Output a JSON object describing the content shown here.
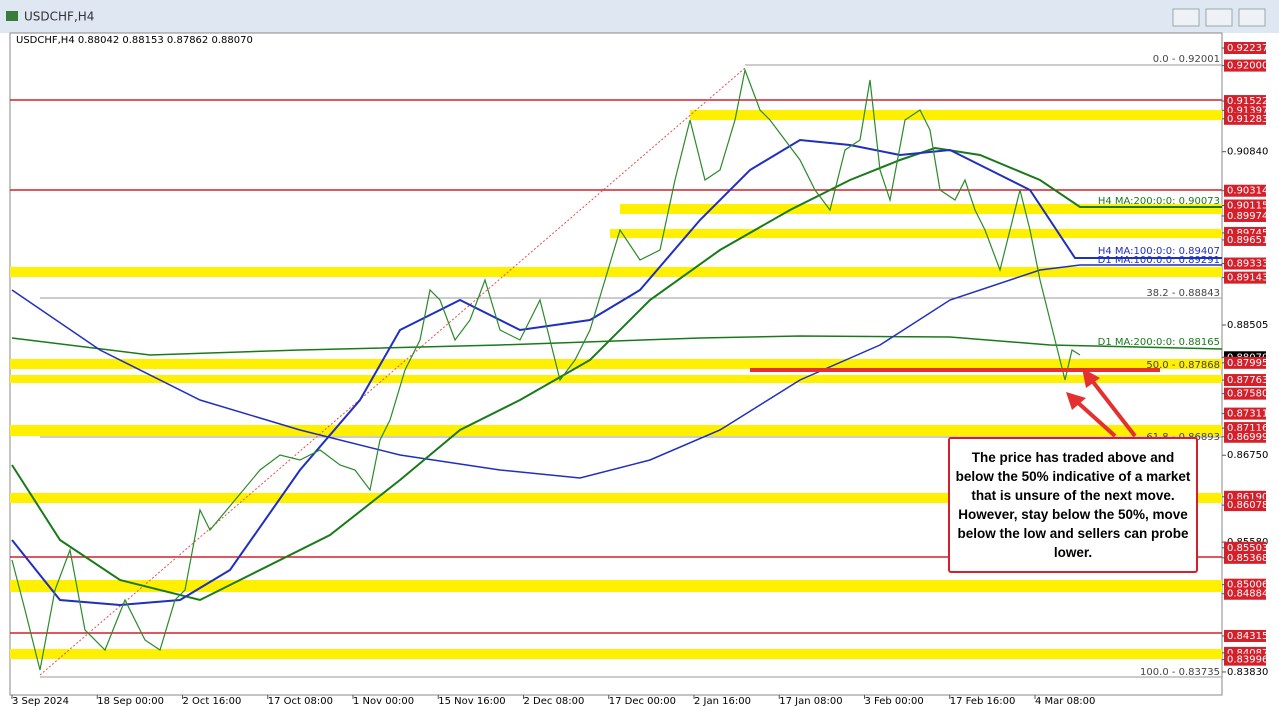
{
  "window": {
    "title": "USDCHF,H4"
  },
  "chart": {
    "info": "USDCHF,H4  0.88042 0.88153 0.87862 0.88070",
    "price_labels": [
      {
        "label": "0.92237",
        "color": "red"
      },
      {
        "label": "0.92000",
        "color": "red"
      },
      {
        "label": "0.91522",
        "color": "red"
      },
      {
        "label": "0.91397",
        "color": "red"
      },
      {
        "label": "0.91283",
        "color": "red"
      },
      {
        "label": "0.90840",
        "color": "none"
      },
      {
        "label": "0.90314",
        "color": "red"
      },
      {
        "label": "0.90115",
        "color": "red"
      },
      {
        "label": "0.89974",
        "color": "red"
      },
      {
        "label": "0.89745",
        "color": "red"
      },
      {
        "label": "0.89651",
        "color": "red"
      },
      {
        "label": "0.89333",
        "color": "red"
      },
      {
        "label": "0.89143",
        "color": "red"
      },
      {
        "label": "0.88505",
        "color": "none"
      },
      {
        "label": "0.88070",
        "color": "black"
      },
      {
        "label": "0.87995",
        "color": "red"
      },
      {
        "label": "0.87763",
        "color": "red"
      },
      {
        "label": "0.87580",
        "color": "red"
      },
      {
        "label": "0.87311",
        "color": "red"
      },
      {
        "label": "0.87116",
        "color": "red"
      },
      {
        "label": "0.86999",
        "color": "red"
      },
      {
        "label": "0.86750",
        "color": "none"
      },
      {
        "label": "0.86190",
        "color": "red"
      },
      {
        "label": "0.86078",
        "color": "red"
      },
      {
        "label": "0.85580",
        "color": "none"
      },
      {
        "label": "0.85503",
        "color": "red"
      },
      {
        "label": "0.85368",
        "color": "red"
      },
      {
        "label": "0.85006",
        "color": "red"
      },
      {
        "label": "0.84884",
        "color": "red"
      },
      {
        "label": "0.84315",
        "color": "red"
      },
      {
        "label": "0.84087",
        "color": "red"
      },
      {
        "label": "0.83996",
        "color": "red"
      },
      {
        "label": "0.83830",
        "color": "none"
      }
    ],
    "time_labels": [
      "3 Sep 2024",
      "18 Sep 00:00",
      "2 Oct 16:00",
      "17 Oct 08:00",
      "1 Nov 00:00",
      "15 Nov 16:00",
      "2 Dec 08:00",
      "17 Dec 00:00",
      "2 Jan 16:00",
      "17 Jan 08:00",
      "3 Feb 00:00",
      "17 Feb 16:00",
      "4 Mar 08:00"
    ],
    "level_texts": [
      {
        "text": "0.0 - 0.92001",
        "color": "#444"
      },
      {
        "text": "H4 MA:200:0:0: 0.90073",
        "color": "#1a7a1a"
      },
      {
        "text": "H4 MA:100:0:0: 0.89407",
        "color": "#1f2fbf"
      },
      {
        "text": "D1 MA:100:0:0: 0.89291",
        "color": "#1f2fbf"
      },
      {
        "text": "38.2 - 0.88843",
        "color": "#444"
      },
      {
        "text": "D1 MA:200:0:0: 0.88165",
        "color": "#1a7a1a"
      },
      {
        "text": "50.0 - 0.87868",
        "color": "#444"
      },
      {
        "text": "61.8 - 0.86893",
        "color": "#444"
      },
      {
        "text": "100.0 - 0.83735",
        "color": "#444"
      }
    ],
    "annotation": "The price has traded above and below the 50% indicative of a market that is unsure of the next move.  However, stay below the 50%, move below the low and sellers can probe lower."
  }
}
